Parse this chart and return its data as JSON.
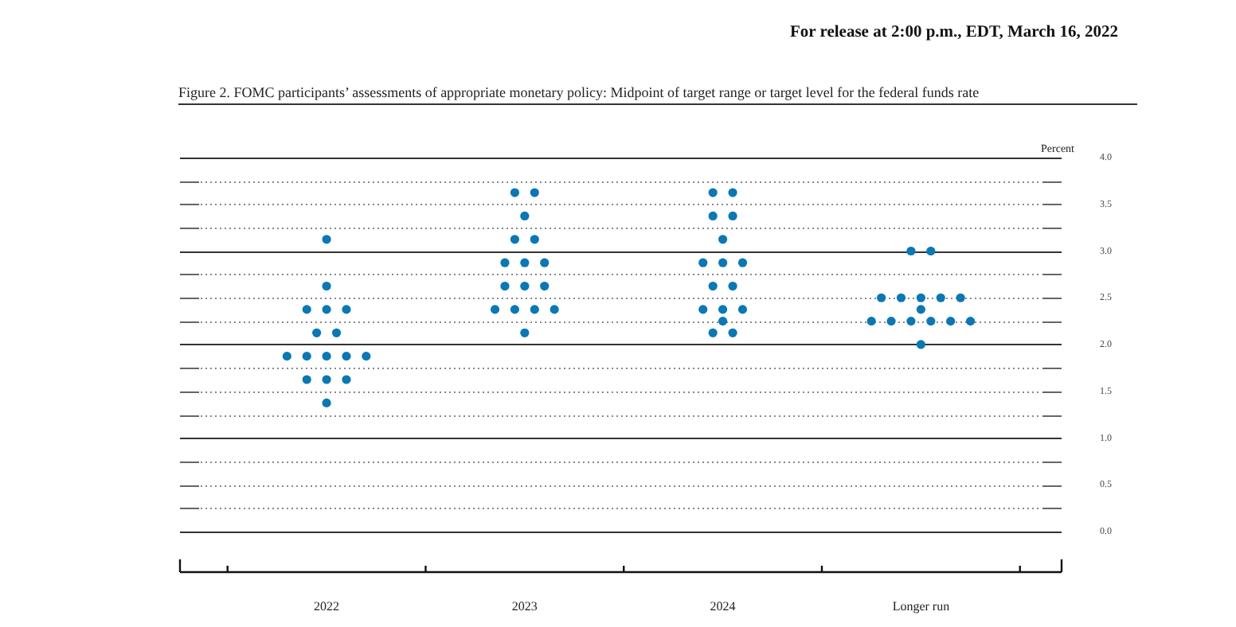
{
  "chart_data": {
    "type": "scatter",
    "title": "Figure 2.  FOMC participants’ assessments of appropriate monetary policy:  Midpoint of target range or target level for the federal funds rate",
    "annotations": [
      "For release at 2:00 p.m., EDT, March 16, 2022"
    ],
    "ylabel": "Percent",
    "series": [
      {
        "color": "#0b78b4",
        "x": [
          2022,
          2022,
          2021.9,
          2022,
          2022.1,
          2021.95,
          2022.05,
          2021.8,
          2021.9,
          2022,
          2022.1,
          2022.2,
          2021.9,
          2022,
          2022.1,
          2022,
          2022.95,
          2023.05,
          2023,
          2022.95,
          2023.05,
          2022.9,
          2023,
          2023.1,
          2022.9,
          2023,
          2023.1,
          2022.85,
          2022.95,
          2023.05,
          2023.15,
          2023,
          2023.95,
          2024.05,
          2023.95,
          2024.05,
          2024,
          2023.9,
          2024,
          2024.1,
          2023.95,
          2024.05,
          2023.9,
          2024,
          2024.1,
          2024,
          2023.95,
          2024.05,
          2024.95,
          2025.05,
          2024.8,
          2024.9,
          2025,
          2025.1,
          2025.2,
          2025,
          2024.75,
          2024.85,
          2024.95,
          2025.05,
          2025.15,
          2025.25,
          2025
        ],
        "values": [
          3.125,
          2.625,
          2.375,
          2.375,
          2.375,
          2.125,
          2.125,
          1.875,
          1.875,
          1.875,
          1.875,
          1.875,
          1.625,
          1.625,
          1.625,
          1.375,
          3.625,
          3.625,
          3.375,
          3.125,
          3.125,
          2.875,
          2.875,
          2.875,
          2.625,
          2.625,
          2.625,
          2.375,
          2.375,
          2.375,
          2.375,
          2.125,
          3.625,
          3.625,
          3.375,
          3.375,
          3.125,
          2.875,
          2.875,
          2.875,
          2.625,
          2.625,
          2.375,
          2.375,
          2.375,
          2.25,
          2.125,
          2.125,
          3.0,
          3.0,
          2.5,
          2.5,
          2.5,
          2.5,
          2.5,
          2.375,
          2.25,
          2.25,
          2.25,
          2.25,
          2.25,
          2.25,
          2.0
        ]
      }
    ],
    "xlim": [
      2021.26,
      2025.71
    ],
    "xticks": [
      {
        "value": 2021.5,
        "label": null
      },
      2022,
      {
        "value": 2022.5,
        "label": null
      },
      2023,
      {
        "value": 2023.5,
        "label": null
      },
      2024,
      {
        "value": 2024.5,
        "label": null
      },
      {
        "value": 2025,
        "label": "Longer run"
      },
      {
        "value": 2025.5,
        "label": null
      }
    ],
    "ylim": [
      -0.45,
      4
    ],
    "yticks": [
      {
        "value": 0,
        "label": "0.0"
      },
      {
        "value": 0.25,
        "label": null
      },
      {
        "value": 0.5,
        "label": "0.5"
      },
      {
        "value": 0.75,
        "label": null
      },
      {
        "value": 1,
        "label": "1.0"
      },
      {
        "value": 1.25,
        "label": null
      },
      {
        "value": 1.5,
        "label": "1.5"
      },
      {
        "value": 1.75,
        "label": null
      },
      {
        "value": 2,
        "label": "2.0"
      },
      {
        "value": 2.25,
        "label": null
      },
      {
        "value": 2.5,
        "label": "2.5"
      },
      {
        "value": 2.75,
        "label": null
      },
      {
        "value": 3,
        "label": "3.0"
      },
      {
        "value": 3.25,
        "label": null
      },
      {
        "value": 3.5,
        "label": "3.5"
      },
      {
        "value": 3.75,
        "label": null
      },
      {
        "value": 4,
        "label": "4.0"
      }
    ],
    "grid": true,
    "marker": "circle"
  }
}
